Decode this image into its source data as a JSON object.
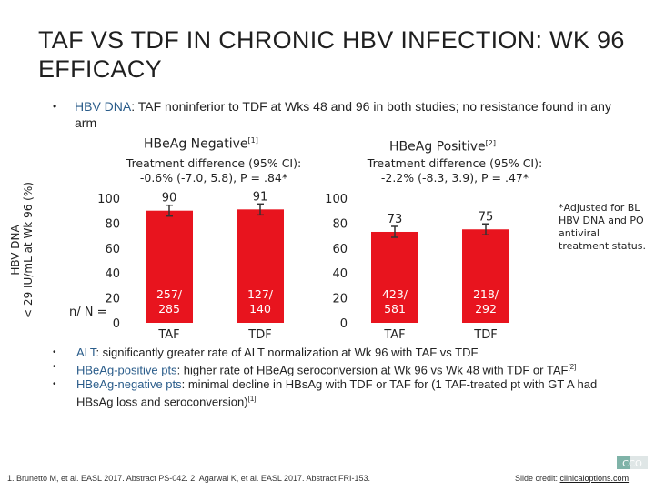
{
  "title": "TAF VS TDF IN CHRONIC HBV INFECTION: WK 96 EFFICACY",
  "top_bullet": {
    "label": "HBV DNA",
    "text": ": TAF noninferior to TDF at Wks 48 and 96 in both studies; no resistance found in any arm"
  },
  "y_axis_label_line1": "HBV DNA",
  "y_axis_label_line2": "< 29 IU/mL at Wk 96 (%)",
  "n_label": "n/ N =",
  "panels": [
    {
      "heading": "HBeAg Negative",
      "heading_ref": "[1]",
      "subtitle_line1": "Treatment difference (95% CI):",
      "subtitle_line2": "-0.6% (-7.0, 5.8), P = .84*"
    },
    {
      "heading": "HBeAg Positive",
      "heading_ref": "[2]",
      "subtitle_line1": "Treatment difference (95% CI):",
      "subtitle_line2": "-2.2% (-8.3, 3.9), P = .47*"
    }
  ],
  "footnote": "*Adjusted for BL HBV DNA and PO antiviral treatment status.",
  "chart_data": [
    {
      "type": "bar",
      "title": "HBeAg Negative",
      "ylabel": "HBV DNA < 29 IU/mL at Wk 96 (%)",
      "categories": [
        "TAF",
        "TDF"
      ],
      "values": [
        90,
        91
      ],
      "value_labels": [
        "90",
        "91"
      ],
      "n_labels": [
        "257/ 285",
        "127/ 140"
      ],
      "ylim": [
        0,
        100
      ],
      "yticks": [
        "0",
        "20",
        "40",
        "60",
        "80",
        "100"
      ],
      "error_bars": true,
      "color": "#e8141e"
    },
    {
      "type": "bar",
      "title": "HBeAg Positive",
      "ylabel": "",
      "categories": [
        "TAF",
        "TDF"
      ],
      "values": [
        73,
        75
      ],
      "value_labels": [
        "73",
        "75"
      ],
      "n_labels": [
        "423/ 581",
        "218/ 292"
      ],
      "ylim": [
        0,
        100
      ],
      "yticks": [
        "0",
        "20",
        "40",
        "60",
        "80",
        "100"
      ],
      "error_bars": true,
      "color": "#e8141e"
    }
  ],
  "bottom_bullets": [
    {
      "label": "ALT",
      "text": ": significantly greater rate of ALT normalization at Wk 96 with TAF vs TDF",
      "ref": ""
    },
    {
      "label": "HBeAg-positive pts",
      "text": ": higher rate of HBeAg seroconversion at Wk 96 vs Wk 48 with TDF or TAF",
      "ref": "[2]"
    },
    {
      "label": "HBeAg-negative pts",
      "text": ": minimal decline in HBsAg with TDF or TAF for (1 TAF-treated pt with GT A had HBsAg loss and seroconversion)",
      "ref": "[1]"
    }
  ],
  "references": "1. Brunetto M, et al. EASL 2017. Abstract PS-042. 2. Agarwal K, et al. EASL 2017. Abstract FRI-153.",
  "credit_prefix": "Slide credit: ",
  "credit_link": "clinicaloptions.com",
  "logo_text": "CCO"
}
